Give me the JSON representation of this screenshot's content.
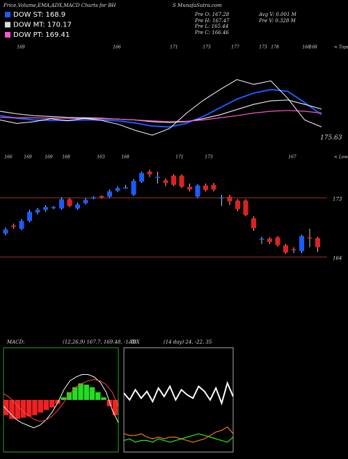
{
  "header": {
    "title": "Price,Volume,EMA,ADX,MACD Charts for BH",
    "site": "S MunafaSutra.com"
  },
  "stats": [
    "Pre O: 167.28",
    "Pre H: 167.47",
    "Pre L: 165.44",
    "Pre C: 166.46",
    "Avg V: 0.001 M",
    "Pre V: 0.328 M"
  ],
  "chart_data": [
    {
      "type": "line",
      "values": [
        168.0,
        167.2,
        167.6,
        168.3,
        167.8,
        168.4,
        167.9,
        167.0,
        165.6,
        164.5,
        166.0,
        169.5,
        172.5,
        175.0,
        177.3,
        176.2,
        177.0,
        173.0,
        168.0,
        166.4
      ],
      "color": "#ffffff",
      "series": [
        {
          "name": "DOW ST: 168.9",
          "color": "#1a5cff",
          "values": [
            169.0,
            168.4,
            168.0,
            167.9,
            167.9,
            168.0,
            168.0,
            167.8,
            167.3,
            166.6,
            166.4,
            167.2,
            168.8,
            170.8,
            172.8,
            174.2,
            175.0,
            174.6,
            172.0,
            169.2
          ]
        },
        {
          "name": "DOW MT: 170.17",
          "color": "#dddddd",
          "values": [
            170.0,
            169.4,
            169.0,
            168.8,
            168.6,
            168.5,
            168.4,
            168.2,
            168.0,
            167.6,
            167.4,
            167.6,
            168.3,
            169.2,
            170.4,
            171.6,
            172.4,
            172.6,
            171.6,
            170.5
          ]
        },
        {
          "name": "DOW PT: 169.41",
          "color": "#ff55cc",
          "values": [
            168.6,
            168.5,
            168.5,
            168.4,
            168.4,
            168.3,
            168.3,
            168.2,
            168.0,
            167.8,
            167.6,
            167.7,
            168.0,
            168.5,
            169.0,
            169.6,
            170.0,
            170.2,
            170.0,
            169.6
          ]
        }
      ],
      "ylim": [
        162,
        186
      ],
      "last_label": "175.63",
      "tops": {
        "labels": [
          "169",
          "166",
          "171",
          "173",
          "177",
          "173",
          "178",
          "168",
          "168"
        ],
        "caption": "< Tops"
      },
      "lows": {
        "labels": [
          "166",
          "169",
          "169",
          "168",
          "163",
          "168",
          "171",
          "173",
          "167"
        ],
        "caption": "< Lows"
      }
    },
    {
      "type": "candlestick",
      "open": [
        167.6,
        168.8,
        168.3,
        169.5,
        170.8,
        171.2,
        171.5,
        171.4,
        172.8,
        171.4,
        172.2,
        172.9,
        173.3,
        173.2,
        174.1,
        174.5,
        173.5,
        175.5,
        177.0,
        176.2,
        175.7,
        176.4,
        176.4,
        174.7,
        173.2,
        174.9,
        175.0,
        173.0,
        173.2,
        172.6,
        172.6,
        169.9,
        166.7,
        166.8,
        167.0,
        165.8,
        165.2,
        164.9,
        167.0,
        166.9
      ],
      "high": [
        168.5,
        169.1,
        169.8,
        171.2,
        171.5,
        171.9,
        171.8,
        173.1,
        173.0,
        172.3,
        173.0,
        173.3,
        173.4,
        174.3,
        174.8,
        175.0,
        175.9,
        177.0,
        177.3,
        177.0,
        176.0,
        176.6,
        176.6,
        175.2,
        175.1,
        175.2,
        175.3,
        173.5,
        173.5,
        172.8,
        172.8,
        170.2,
        167.1,
        167.0,
        167.2,
        166.0,
        165.5,
        167.4,
        168.3,
        167.1
      ],
      "low": [
        167.3,
        168.3,
        168.1,
        169.3,
        170.5,
        170.9,
        171.3,
        171.2,
        171.6,
        171.2,
        172.0,
        172.8,
        172.9,
        173.0,
        173.9,
        174.4,
        173.3,
        175.3,
        176.2,
        175.2,
        174.8,
        174.8,
        174.5,
        174.0,
        173.0,
        174.0,
        174.0,
        171.8,
        171.9,
        171.0,
        170.2,
        168.0,
        166.0,
        166.0,
        165.6,
        164.5,
        164.6,
        164.6,
        165.5,
        164.8
      ],
      "close": [
        168.2,
        168.6,
        169.5,
        170.9,
        171.2,
        171.6,
        171.6,
        172.8,
        171.8,
        172.0,
        172.7,
        173.1,
        173.1,
        174.0,
        174.5,
        174.6,
        175.6,
        176.8,
        176.6,
        176.2,
        175.3,
        175.0,
        174.7,
        174.3,
        174.9,
        174.2,
        174.3,
        173.1,
        172.5,
        171.3,
        170.4,
        168.4,
        166.8,
        166.3,
        165.8,
        164.7,
        165.1,
        167.2,
        166.9,
        165.5
      ],
      "up_color": "#1a5cff",
      "down_color": "#e02020",
      "ylim": [
        161,
        179
      ],
      "yticks": [
        173,
        164
      ]
    },
    {
      "type": "macd",
      "title": "MACD:",
      "subtitle": "(12,26,9) 167.7, 169.48, -1.78",
      "histogram": {
        "values": [
          -1.2,
          -1.5,
          -1.5,
          -1.4,
          -1.3,
          -1.2,
          -1.0,
          -0.8,
          -0.6,
          -0.3,
          0.2,
          0.6,
          1.0,
          1.3,
          1.2,
          1.0,
          0.6,
          0.2,
          -0.5,
          -1.2
        ],
        "up_color": "#22dd22",
        "down_color": "#ee2222"
      },
      "series": [
        {
          "color": "#ffffff",
          "values": [
            -0.5,
            -1.0,
            -1.5,
            -1.8,
            -2.0,
            -2.2,
            -2.0,
            -1.6,
            -1.0,
            -0.2,
            0.8,
            1.5,
            1.8,
            2.0,
            2.0,
            1.8,
            1.4,
            0.6,
            -0.8,
            -1.78
          ]
        },
        {
          "color": "#ff4444",
          "values": [
            0.5,
            0.2,
            -0.3,
            -0.8,
            -1.2,
            -1.5,
            -1.7,
            -1.6,
            -1.3,
            -0.8,
            -0.2,
            0.5,
            1.0,
            1.3,
            1.5,
            1.6,
            1.5,
            1.2,
            0.6,
            -0.5
          ]
        }
      ],
      "ylim": [
        -4,
        4
      ],
      "frame_color": "#22aa22"
    },
    {
      "type": "line",
      "title": "ADX",
      "subtitle": "(14 day) 24, -22, 35",
      "series": [
        {
          "color": "#ffffff",
          "values": [
            34,
            30,
            36,
            31,
            35,
            29,
            37,
            32,
            38,
            30,
            36,
            33,
            31,
            38,
            35,
            30,
            37,
            28,
            40,
            32
          ]
        },
        {
          "color": "#22ee22",
          "values": [
            6,
            7,
            5,
            6,
            6,
            5,
            7,
            6,
            5,
            6,
            7,
            8,
            9,
            10,
            9,
            8,
            7,
            6,
            5,
            8
          ]
        },
        {
          "color": "#ee7722",
          "values": [
            10,
            9,
            9,
            10,
            8,
            7,
            8,
            7,
            8,
            8,
            7,
            6,
            5,
            6,
            7,
            9,
            11,
            12,
            14,
            10
          ]
        }
      ],
      "ylim": [
        0,
        60
      ],
      "frame_color": "#aaaaaa"
    }
  ]
}
